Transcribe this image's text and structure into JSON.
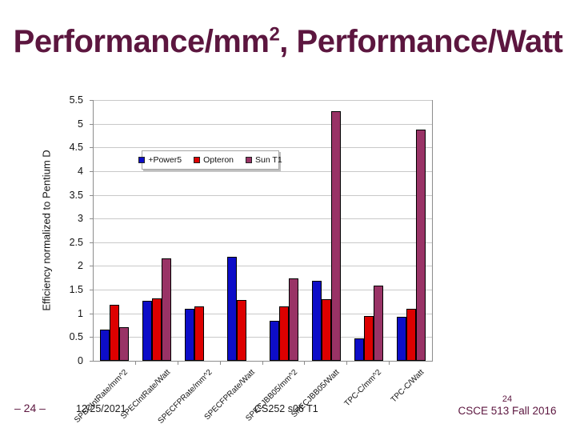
{
  "slide": {
    "title_pre": "Performance/mm",
    "title_sup": "2",
    "title_post": ", Performance/Watt"
  },
  "footer": {
    "page_marker": "– 24 –",
    "date": "12/25/2021",
    "center_text": "CS252 s06 T1",
    "page_number": "24",
    "course": "CSCE 513 Fall 2016"
  },
  "colors": {
    "accent_maroon": "#5C163F",
    "power5_blue": "#0D0DC8",
    "opteron_red": "#DD0000",
    "sun_t1_plum": "#993366",
    "gridline_gray": "#C9C9C9",
    "axis_gray": "#8C8C8C"
  },
  "chart_data": {
    "type": "bar",
    "title": "",
    "xlabel": "",
    "ylabel": "Efficiency normalized to Pentium D",
    "ylim": [
      0,
      5.5
    ],
    "ytick_step": 0.5,
    "grid": true,
    "legend_position": "inside-top-left",
    "categories": [
      "SPECIntRate/mm^2",
      "SPECIntRate/Watt",
      "SPECFPRate/mm^2",
      "SPECFPRate/Watt",
      "SPECJBB05/mm^2",
      "SPECJBB05/Watt",
      "TPC-C/mm^2",
      "TPC-C/Watt"
    ],
    "series": [
      {
        "name": "+Power5",
        "color": "#0D0DC8",
        "values": [
          0.65,
          1.27,
          1.09,
          2.19,
          0.85,
          1.69,
          0.48,
          0.93
        ]
      },
      {
        "name": "Opteron",
        "color": "#DD0000",
        "values": [
          1.18,
          1.31,
          1.14,
          1.28,
          1.14,
          1.3,
          0.95,
          1.1
        ]
      },
      {
        "name": "Sun T1",
        "color": "#993366",
        "values": [
          0.71,
          2.16,
          null,
          null,
          1.73,
          5.26,
          1.58,
          4.87
        ]
      }
    ]
  }
}
